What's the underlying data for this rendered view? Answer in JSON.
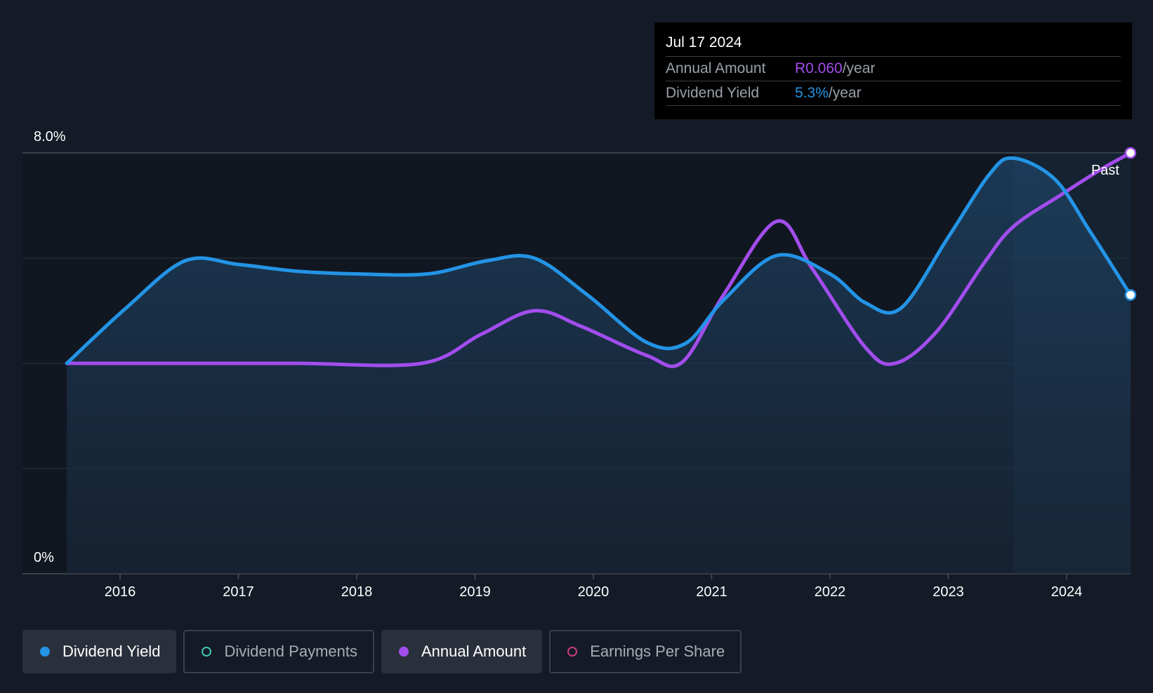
{
  "chart_data": {
    "type": "line",
    "y_axis": {
      "ticks": [
        "8.0%",
        "0%"
      ],
      "ylim": [
        0,
        8.0
      ],
      "unit": "%"
    },
    "x_axis": {
      "ticks": [
        "2016",
        "2017",
        "2018",
        "2019",
        "2020",
        "2021",
        "2022",
        "2023",
        "2024"
      ],
      "xlim": [
        2015.4,
        2024.54
      ]
    },
    "grid": true,
    "past_label": "Past",
    "series": [
      {
        "name": "Dividend Yield",
        "color": "#2394e6",
        "points": [
          [
            2015.55,
            4.0
          ],
          [
            2016.05,
            5.05
          ],
          [
            2016.55,
            5.95
          ],
          [
            2017.0,
            5.88
          ],
          [
            2017.5,
            5.75
          ],
          [
            2018.0,
            5.7
          ],
          [
            2018.6,
            5.7
          ],
          [
            2019.1,
            5.95
          ],
          [
            2019.5,
            6.0
          ],
          [
            2019.95,
            5.3
          ],
          [
            2020.45,
            4.4
          ],
          [
            2020.78,
            4.38
          ],
          [
            2021.1,
            5.2
          ],
          [
            2021.55,
            6.05
          ],
          [
            2022.0,
            5.7
          ],
          [
            2022.3,
            5.15
          ],
          [
            2022.6,
            5.05
          ],
          [
            2023.0,
            6.4
          ],
          [
            2023.35,
            7.6
          ],
          [
            2023.55,
            7.9
          ],
          [
            2023.9,
            7.5
          ],
          [
            2024.2,
            6.5
          ],
          [
            2024.54,
            5.3
          ]
        ]
      },
      {
        "name": "Annual Amount",
        "color": "#a24ded",
        "points": [
          [
            2015.55,
            4.0
          ],
          [
            2016.5,
            4.0
          ],
          [
            2017.5,
            4.0
          ],
          [
            2018.55,
            4.0
          ],
          [
            2019.05,
            4.55
          ],
          [
            2019.5,
            5.0
          ],
          [
            2019.9,
            4.7
          ],
          [
            2020.45,
            4.15
          ],
          [
            2020.75,
            4.02
          ],
          [
            2021.1,
            5.3
          ],
          [
            2021.55,
            6.7
          ],
          [
            2021.85,
            5.8
          ],
          [
            2022.3,
            4.3
          ],
          [
            2022.55,
            4.0
          ],
          [
            2022.9,
            4.6
          ],
          [
            2023.3,
            5.9
          ],
          [
            2023.55,
            6.6
          ],
          [
            2023.95,
            7.2
          ],
          [
            2024.3,
            7.7
          ],
          [
            2024.54,
            8.0
          ]
        ]
      }
    ]
  },
  "tooltip": {
    "date": "Jul 17 2024",
    "rows": [
      {
        "label": "Annual Amount",
        "value": "R0.060",
        "unit": "/year",
        "color": "#a24ded"
      },
      {
        "label": "Dividend Yield",
        "value": "5.3%",
        "unit": "/year",
        "color": "#2394e6"
      }
    ]
  },
  "legend": [
    {
      "label": "Dividend Yield",
      "color": "#2394e6",
      "active": true
    },
    {
      "label": "Dividend Payments",
      "color": "#3ec7b4",
      "active": false
    },
    {
      "label": "Annual Amount",
      "color": "#a24ded",
      "active": true
    },
    {
      "label": "Earnings Per Share",
      "color": "#c63f7e",
      "active": false
    }
  ]
}
